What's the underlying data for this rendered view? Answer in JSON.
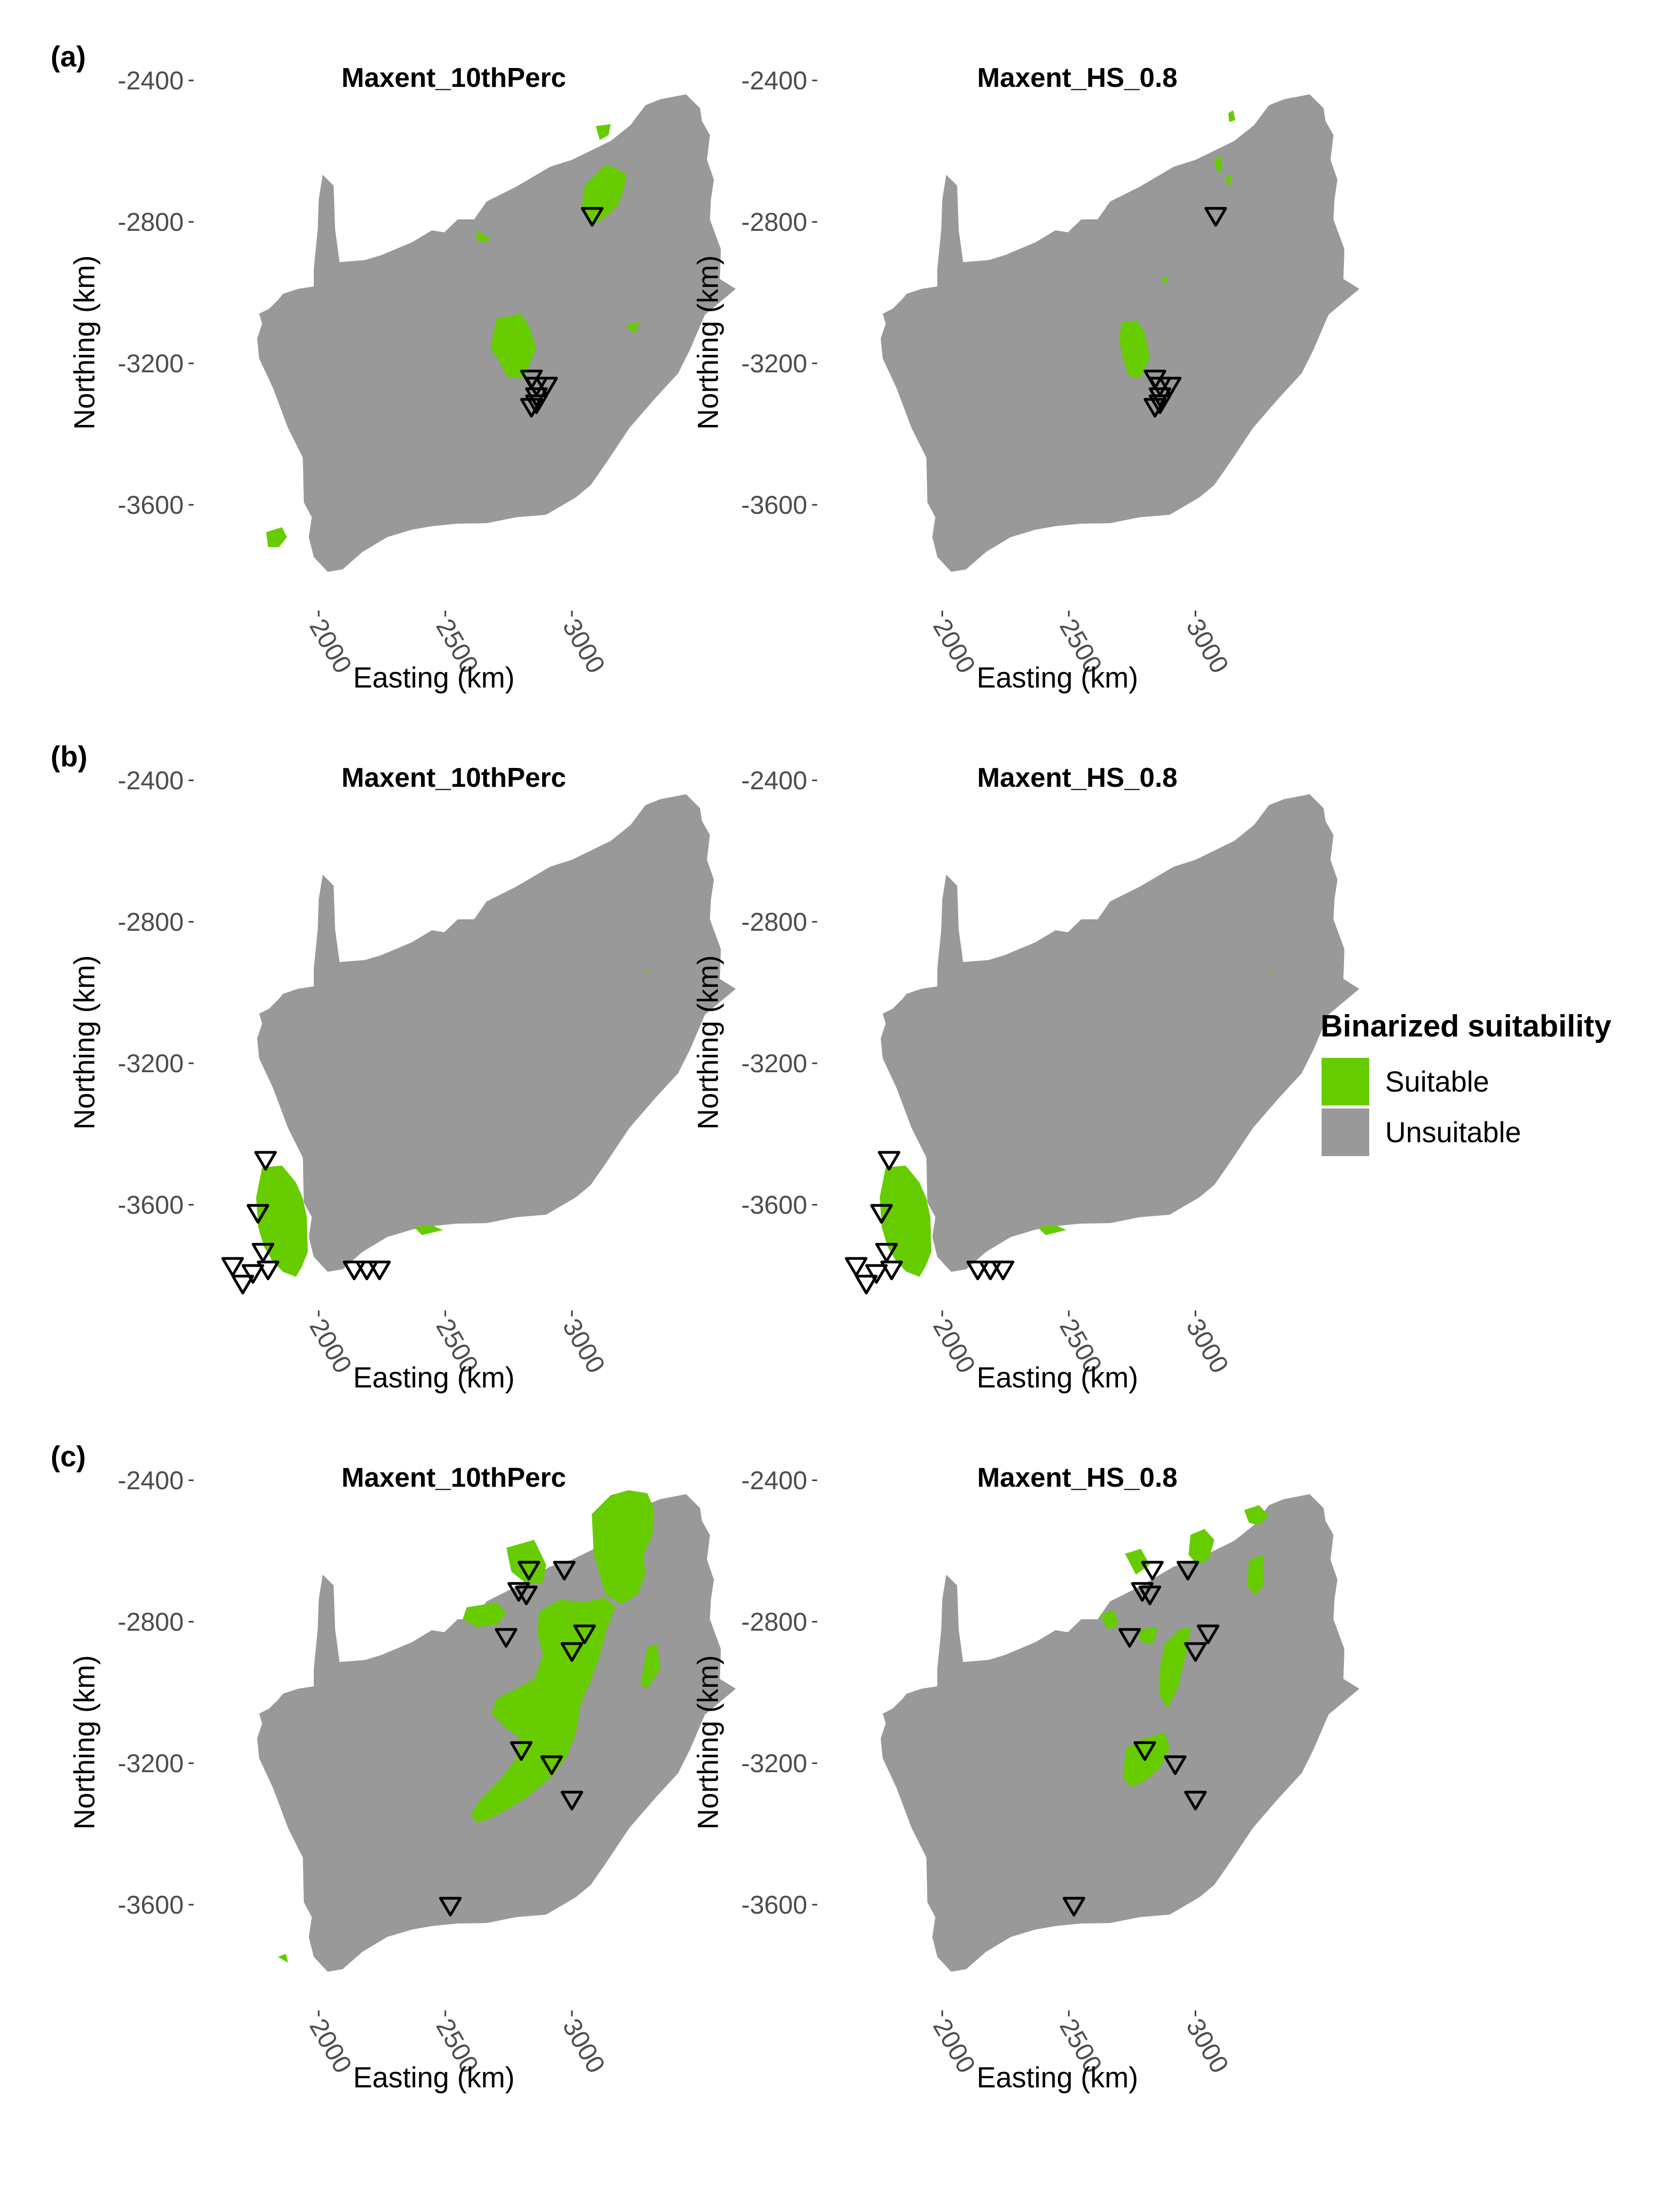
{
  "figure": {
    "row_tags": [
      "(a)",
      "(b)",
      "(c)"
    ],
    "panel_titles": [
      "Maxent_10thPerc",
      "Maxent_HS_0.8"
    ],
    "x_axis_title": "Easting (km)",
    "y_axis_title": "Northing (km)",
    "x_ticks": [
      "2000",
      "2500",
      "3000"
    ],
    "y_ticks": [
      "-2400",
      "-2800",
      "-3200",
      "-3600"
    ]
  },
  "legend": {
    "title": "Binarized suitability",
    "items": [
      {
        "label": "Suitable",
        "color": "#66cc00"
      },
      {
        "label": "Unsuitable",
        "color": "#999999"
      }
    ]
  },
  "colors": {
    "suitable": "#66cc00",
    "unsuitable": "#999999",
    "marker": "#000000"
  },
  "map_data": {
    "type": "binarized-suitability-map",
    "x_unit": "Easting (km)",
    "y_unit": "Northing (km)",
    "x_ticks": [
      2000,
      2500,
      3000
    ],
    "y_ticks": [
      -2400,
      -2800,
      -3200,
      -3600
    ],
    "marker_shape": "inverted-triangle",
    "rows": [
      {
        "tag": "(a)",
        "occurrences": [
          [
            3080,
            -2780
          ],
          [
            2840,
            -3240
          ],
          [
            2860,
            -3260
          ],
          [
            2900,
            -3260
          ],
          [
            2860,
            -3290
          ],
          [
            2860,
            -3310
          ],
          [
            2840,
            -3320
          ]
        ],
        "panels": [
          {
            "title": "Maxent_10thPerc",
            "suitable_areas": "north-east interior band and Drakensberg escarpment; small patch south-west coast"
          },
          {
            "title": "Maxent_HS_0.8",
            "suitable_areas": "small patches north-east and around Drakensberg escarpment"
          }
        ]
      },
      {
        "tag": "(b)",
        "occurrences": [
          [
            1790,
            -3470
          ],
          [
            1760,
            -3620
          ],
          [
            1660,
            -3770
          ],
          [
            1780,
            -3730
          ],
          [
            1800,
            -3780
          ],
          [
            1740,
            -3790
          ],
          [
            1700,
            -3820
          ],
          [
            2140,
            -3780
          ],
          [
            2190,
            -3780
          ],
          [
            2240,
            -3780
          ]
        ],
        "panels": [
          {
            "title": "Maxent_10thPerc",
            "suitable_areas": "south-western Cape and southern coastal strip"
          },
          {
            "title": "Maxent_HS_0.8",
            "suitable_areas": "south-western Cape and southern coastal strip"
          }
        ]
      },
      {
        "tag": "(c)",
        "occurrences": [
          [
            2830,
            -2650
          ],
          [
            2970,
            -2650
          ],
          [
            2790,
            -2710
          ],
          [
            2820,
            -2720
          ],
          [
            2740,
            -2840
          ],
          [
            3050,
            -2830
          ],
          [
            3000,
            -2880
          ],
          [
            2800,
            -3160
          ],
          [
            2920,
            -3200
          ],
          [
            3000,
            -3300
          ],
          [
            2520,
            -3600
          ]
        ],
        "panels": [
          {
            "title": "Maxent_10thPerc",
            "suitable_areas": "broad north-eastern region, eastern escarpment and east coast"
          },
          {
            "title": "Maxent_HS_0.8",
            "suitable_areas": "scattered patches north-east and central-eastern band"
          }
        ]
      }
    ]
  }
}
